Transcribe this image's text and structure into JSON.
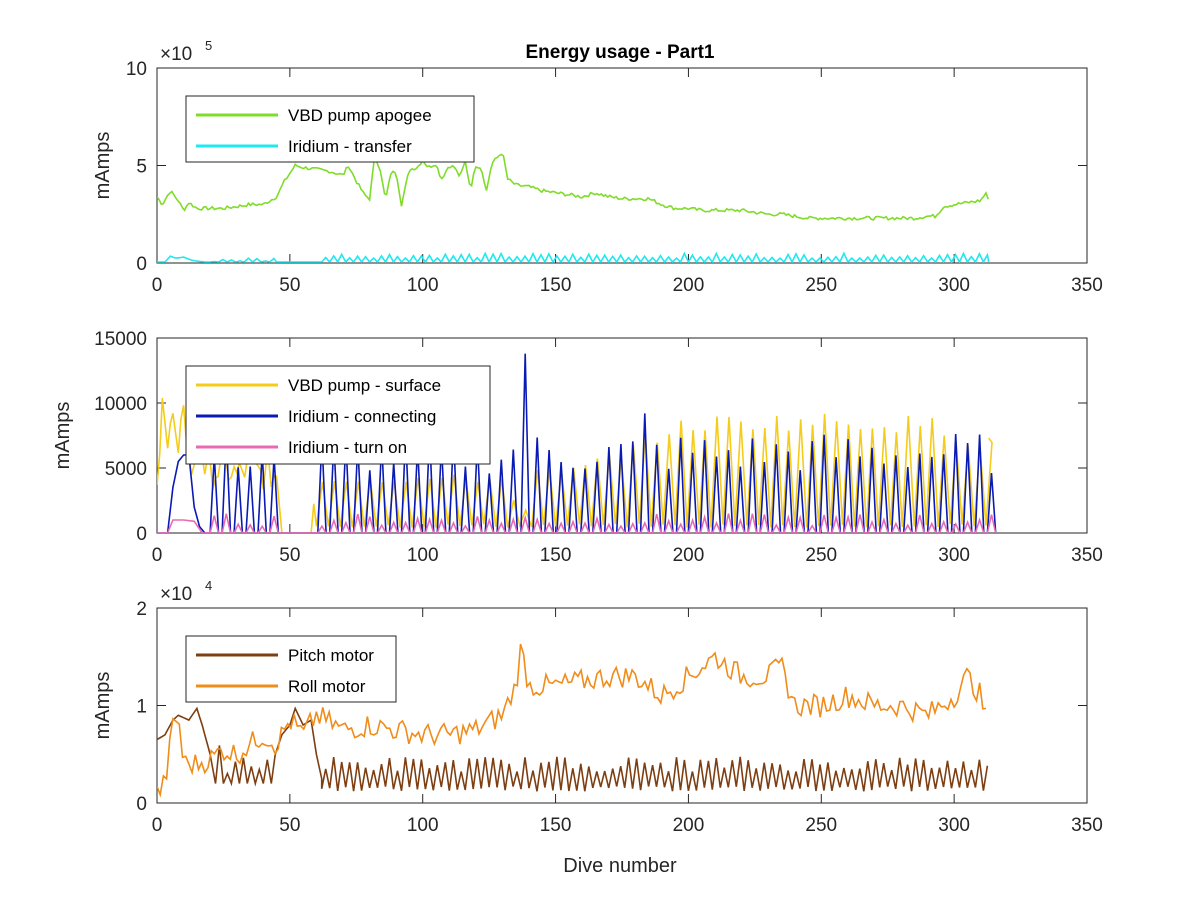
{
  "figure": {
    "title": "Energy usage - Part1",
    "xlabel": "Dive number"
  },
  "colors": {
    "vbd_apogee": "#7fdc2a",
    "iridium_transfer": "#1ee8f0",
    "vbd_surface": "#f5cc1a",
    "iridium_connecting": "#0a1ab4",
    "iridium_turn_on": "#e86ab4",
    "pitch_motor": "#7d3f12",
    "roll_motor": "#f08c1a"
  },
  "chart_data": [
    {
      "type": "line",
      "title": "Energy usage - Part1",
      "ylabel": "mAmps",
      "xlabel": "",
      "xlim": [
        0,
        350
      ],
      "ylim": [
        0,
        10
      ],
      "y_multiplier": "×10",
      "y_multiplier_exp": "5",
      "xticks": [
        0,
        50,
        100,
        150,
        200,
        250,
        300,
        350
      ],
      "yticks": [
        0,
        5,
        10
      ],
      "legend_position": "top-left",
      "series": [
        {
          "name": "VBD pump apogee",
          "color": "#7fdc2a",
          "points": [
            [
              0,
              3.4
            ],
            [
              2,
              3.0
            ],
            [
              5,
              3.7
            ],
            [
              8,
              3.2
            ],
            [
              10,
              2.7
            ],
            [
              12,
              3.1
            ],
            [
              15,
              2.8
            ],
            [
              20,
              2.8
            ],
            [
              25,
              2.8
            ],
            [
              30,
              2.9
            ],
            [
              35,
              3.0
            ],
            [
              40,
              3.0
            ],
            [
              45,
              3.4
            ],
            [
              48,
              4.2
            ],
            [
              52,
              5.0
            ],
            [
              55,
              4.9
            ],
            [
              60,
              4.8
            ],
            [
              65,
              4.7
            ],
            [
              70,
              4.5
            ],
            [
              72,
              5.0
            ],
            [
              75,
              4.2
            ],
            [
              78,
              3.5
            ],
            [
              80,
              3.3
            ],
            [
              82,
              5.5
            ],
            [
              84,
              4.8
            ],
            [
              86,
              3.2
            ],
            [
              88,
              4.6
            ],
            [
              90,
              4.7
            ],
            [
              92,
              3.0
            ],
            [
              95,
              4.8
            ],
            [
              98,
              4.9
            ],
            [
              100,
              5.3
            ],
            [
              102,
              4.9
            ],
            [
              105,
              5.1
            ],
            [
              107,
              4.3
            ],
            [
              110,
              5.0
            ],
            [
              112,
              4.9
            ],
            [
              114,
              4.4
            ],
            [
              116,
              5.2
            ],
            [
              118,
              3.8
            ],
            [
              120,
              5.0
            ],
            [
              122,
              4.9
            ],
            [
              124,
              3.7
            ],
            [
              126,
              5.1
            ],
            [
              128,
              5.4
            ],
            [
              130,
              5.7
            ],
            [
              132,
              4.3
            ],
            [
              135,
              4.0
            ],
            [
              140,
              3.9
            ],
            [
              145,
              3.7
            ],
            [
              150,
              3.6
            ],
            [
              155,
              3.5
            ],
            [
              160,
              3.4
            ],
            [
              165,
              3.6
            ],
            [
              170,
              3.4
            ],
            [
              175,
              3.3
            ],
            [
              180,
              3.3
            ],
            [
              185,
              3.3
            ],
            [
              190,
              3.0
            ],
            [
              195,
              2.8
            ],
            [
              200,
              2.8
            ],
            [
              205,
              2.7
            ],
            [
              210,
              2.7
            ],
            [
              215,
              2.7
            ],
            [
              220,
              2.7
            ],
            [
              225,
              2.6
            ],
            [
              230,
              2.5
            ],
            [
              235,
              2.5
            ],
            [
              240,
              2.4
            ],
            [
              245,
              2.3
            ],
            [
              250,
              2.3
            ],
            [
              255,
              2.3
            ],
            [
              260,
              2.3
            ],
            [
              265,
              2.3
            ],
            [
              270,
              2.3
            ],
            [
              275,
              2.3
            ],
            [
              280,
              2.3
            ],
            [
              285,
              2.3
            ],
            [
              290,
              2.4
            ],
            [
              293,
              2.4
            ],
            [
              296,
              2.9
            ],
            [
              300,
              3.0
            ],
            [
              305,
              3.1
            ],
            [
              310,
              3.2
            ],
            [
              312,
              3.6
            ],
            [
              313,
              3.1
            ]
          ]
        },
        {
          "name": "Iridium - transfer",
          "color": "#1ee8f0",
          "points": [
            [
              0,
              0.05
            ],
            [
              3,
              0.05
            ],
            [
              5,
              0.35
            ],
            [
              7,
              0.25
            ],
            [
              10,
              0.3
            ],
            [
              13,
              0.15
            ],
            [
              15,
              0.1
            ],
            [
              18,
              0.05
            ],
            [
              60,
              0.05
            ],
            [
              313,
              0.05
            ]
          ],
          "spikes": {
            "x_start": 20,
            "x_end": 44,
            "step": 3.2,
            "min": 0.05,
            "max": 0.3,
            "x_start2": 62,
            "x_end2": 313,
            "step2": 3.0,
            "max2": 0.5
          }
        }
      ]
    },
    {
      "type": "line",
      "title": "",
      "ylabel": "mAmps",
      "xlabel": "",
      "xlim": [
        0,
        350
      ],
      "ylim": [
        0,
        15000
      ],
      "xticks": [
        0,
        50,
        100,
        150,
        200,
        250,
        300,
        350
      ],
      "yticks": [
        0,
        5000,
        10000,
        15000
      ],
      "legend_position": "top-left",
      "series": [
        {
          "name": "VBD pump - surface",
          "color": "#f5cc1a",
          "points": [
            [
              0,
              3200
            ],
            [
              2,
              11300
            ],
            [
              4,
              6500
            ],
            [
              6,
              9000
            ],
            [
              8,
              5000
            ],
            [
              10,
              10500
            ],
            [
              12,
              5500
            ],
            [
              14,
              4500
            ],
            [
              16,
              8000
            ],
            [
              18,
              5000
            ],
            [
              20,
              4500
            ],
            [
              25,
              5000
            ],
            [
              30,
              4500
            ],
            [
              35,
              5000
            ],
            [
              40,
              4500
            ],
            [
              45,
              4500
            ],
            [
              47,
              0
            ],
            [
              52,
              0
            ],
            [
              55,
              0
            ],
            [
              58,
              0
            ],
            [
              60,
              4500
            ],
            [
              65,
              4500
            ],
            [
              70,
              4500
            ],
            [
              80,
              4500
            ],
            [
              90,
              4500
            ],
            [
              100,
              4500
            ],
            [
              110,
              4500
            ],
            [
              120,
              4500
            ],
            [
              130,
              4500
            ],
            [
              135,
              500
            ],
            [
              140,
              5000
            ],
            [
              150,
              5000
            ],
            [
              160,
              5500
            ],
            [
              170,
              6500
            ],
            [
              180,
              7500
            ],
            [
              190,
              8500
            ],
            [
              200,
              9000
            ],
            [
              210,
              9200
            ],
            [
              250,
              9300
            ],
            [
              290,
              9000
            ],
            [
              300,
              8000
            ],
            [
              313,
              7300
            ]
          ],
          "oscillate_from": 60,
          "oscillate_step": 4.5,
          "oscillate_floor": 400
        },
        {
          "name": "Iridium - connecting",
          "color": "#0a1ab4",
          "points": [
            [
              0,
              0
            ],
            [
              4,
              0
            ],
            [
              6,
              3500
            ],
            [
              8,
              5500
            ],
            [
              10,
              6000
            ],
            [
              12,
              6000
            ],
            [
              14,
              2000
            ],
            [
              16,
              500
            ],
            [
              18,
              0
            ]
          ],
          "spikes": {
            "x_start": 20,
            "x_end": 313,
            "step": 4.5,
            "base": 0,
            "peak_min": 4500,
            "peak_max": 7800
          },
          "notable": [
            [
              136,
              13800
            ],
            [
              182,
              8000
            ],
            [
              184,
              9200
            ]
          ],
          "gap": [
            46,
            60
          ]
        },
        {
          "name": "Iridium - turn on",
          "color": "#e86ab4",
          "points": [
            [
              0,
              0
            ],
            [
              4,
              0
            ],
            [
              6,
              1000
            ],
            [
              10,
              1000
            ],
            [
              14,
              900
            ],
            [
              17,
              0
            ]
          ],
          "spikes": {
            "x_start": 20,
            "x_end": 313,
            "step": 4.5,
            "base": 0,
            "peak_min": 500,
            "peak_max": 1500
          },
          "gap": [
            46,
            60
          ]
        }
      ]
    },
    {
      "type": "line",
      "title": "",
      "ylabel": "mAmps",
      "xlabel": "Dive number",
      "xlim": [
        0,
        350
      ],
      "ylim": [
        0,
        2
      ],
      "y_multiplier": "×10",
      "y_multiplier_exp": "4",
      "xticks": [
        0,
        50,
        100,
        150,
        200,
        250,
        300,
        350
      ],
      "yticks": [
        0,
        1,
        2
      ],
      "legend_position": "top-left",
      "series": [
        {
          "name": "Pitch motor",
          "color": "#7d3f12",
          "points": [
            [
              0,
              0.65
            ],
            [
              3,
              0.7
            ],
            [
              6,
              0.85
            ],
            [
              8,
              0.9
            ],
            [
              12,
              0.85
            ],
            [
              15,
              0.97
            ],
            [
              17,
              0.8
            ],
            [
              20,
              0.5
            ],
            [
              22,
              0.2
            ],
            [
              45,
              0.2
            ],
            [
              47,
              0.7
            ],
            [
              50,
              0.8
            ],
            [
              52,
              0.97
            ],
            [
              55,
              0.8
            ],
            [
              58,
              0.85
            ],
            [
              60,
              0.5
            ],
            [
              62,
              0.25
            ]
          ],
          "oscillate": {
            "x_start": 22,
            "x_end": 45,
            "step": 3.0,
            "min": 0.2,
            "max": 0.5,
            "x_start2": 62,
            "x_end2": 313,
            "step2": 3.0,
            "min2": 0.12,
            "max2": 0.48
          }
        },
        {
          "name": "Roll motor",
          "color": "#f08c1a",
          "points": [
            [
              0,
              0.1
            ],
            [
              3,
              0.2
            ],
            [
              6,
              0.8
            ],
            [
              8,
              0.9
            ],
            [
              10,
              0.4
            ],
            [
              15,
              0.4
            ],
            [
              20,
              0.45
            ],
            [
              25,
              0.55
            ],
            [
              30,
              0.5
            ],
            [
              35,
              0.6
            ],
            [
              40,
              0.7
            ],
            [
              45,
              0.6
            ],
            [
              50,
              0.85
            ],
            [
              55,
              0.7
            ],
            [
              60,
              0.9
            ],
            [
              70,
              0.75
            ],
            [
              80,
              0.8
            ],
            [
              90,
              0.75
            ],
            [
              100,
              0.7
            ],
            [
              110,
              0.7
            ],
            [
              120,
              0.75
            ],
            [
              130,
              0.9
            ],
            [
              135,
              1.2
            ],
            [
              137,
              1.6
            ],
            [
              140,
              1.2
            ],
            [
              150,
              1.2
            ],
            [
              160,
              1.25
            ],
            [
              170,
              1.3
            ],
            [
              180,
              1.3
            ],
            [
              190,
              1.1
            ],
            [
              200,
              1.3
            ],
            [
              210,
              1.5
            ],
            [
              220,
              1.3
            ],
            [
              230,
              1.3
            ],
            [
              235,
              1.4
            ],
            [
              240,
              1.0
            ],
            [
              250,
              1.0
            ],
            [
              260,
              1.1
            ],
            [
              270,
              1.0
            ],
            [
              280,
              1.0
            ],
            [
              290,
              0.9
            ],
            [
              300,
              1.1
            ],
            [
              305,
              1.3
            ],
            [
              310,
              1.1
            ],
            [
              313,
              0.75
            ]
          ],
          "jitter": 0.12
        }
      ]
    }
  ]
}
